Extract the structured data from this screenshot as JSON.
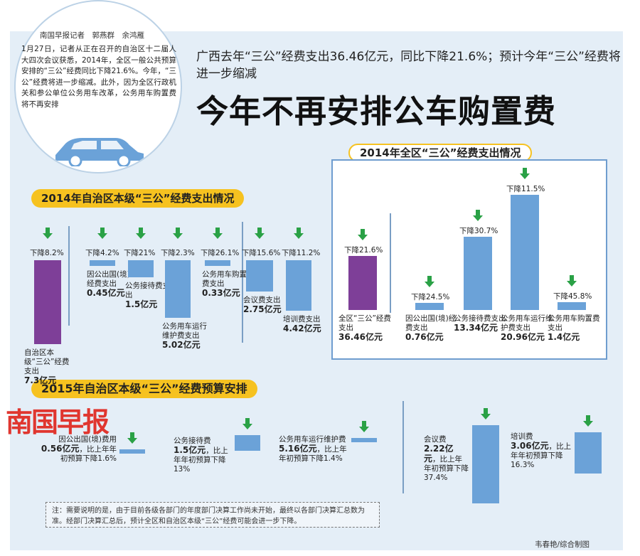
{
  "byline": "南国早报记者　郭燕群　余鸿雁",
  "lead": "1月27日，记者从正在召开的自治区十二届人大四次会议获悉，2014年，全区一般公共预算安排的“三公”经费同比下降21.6%。今年，“三公”经费将进一步缩减。此外，因为全区行政机关和参公单位公务用车改革，公务用车购置费将不再安排",
  "headline_sub": "广西去年“三公”经费支出36.46亿元，同比下降21.6%；预计今年“三公”经费将进一步缩减",
  "headline_main": "今年不再安排公车购置费",
  "brand": "南国早报",
  "note": "注：需要说明的是，由于目前各级各部门的年度部门决算工作尚未开始，最终以各部门决算汇总数为准。经部门决算汇总后，预计全区和自治区本级“三公”经费可能会进一步下降。",
  "credit": "韦春艳/综合制图",
  "colors": {
    "purple": "#7e3f98",
    "blue": "#6ba2d8",
    "green": "#2aa146",
    "yellow": "#f6c220"
  },
  "chart_data": [
    {
      "type": "bar",
      "title": "2014年自治区本级“三公”经费支出情况",
      "unit": "亿元",
      "categories": [
        "自治区本级“三公”经费支出",
        "因公出国(境)经费支出",
        "公务接待费支出",
        "公务用车运行维护费支出",
        "公务用车购置费支出",
        "会议费支出",
        "培训费支出"
      ],
      "values": [
        7.3,
        0.45,
        1.5,
        5.02,
        0.33,
        2.75,
        4.42
      ],
      "declines": [
        "下降8.2%",
        "下降4.2%",
        "下降21%",
        "下降2.3%",
        "下降26.1%",
        "下降15.6%",
        "下降11.2%"
      ],
      "value_labels": [
        "7.3亿元",
        "0.45亿元",
        "1.5亿元",
        "5.02亿元",
        "0.33亿元",
        "2.75亿元",
        "4.42亿元"
      ]
    },
    {
      "type": "bar",
      "title": "2014年全区“三公”经费支出情况",
      "unit": "亿元",
      "categories": [
        "全区“三公”经费支出",
        "因公出国(境)经费支出",
        "公务接待费支出",
        "公务用车运行维护费支出",
        "公务用车购置费支出"
      ],
      "values": [
        36.46,
        0.76,
        13.34,
        20.96,
        1.4
      ],
      "declines": [
        "下降21.6%",
        "下降24.5%",
        "下降30.7%",
        "下降11.5%",
        "下降45.8%"
      ],
      "value_labels": [
        "36.46亿元",
        "0.76亿元",
        "13.34亿元",
        "20.96亿元",
        "1.4亿元"
      ]
    },
    {
      "type": "bar",
      "title": "2015年自治区本级“三公”经费预算安排",
      "unit": "亿元",
      "categories": [
        "因公出国(境)费用",
        "公务接待费",
        "公务用车运行维护费",
        "会议费",
        "培训费"
      ],
      "values": [
        0.56,
        1.5,
        5.16,
        2.22,
        3.06
      ],
      "declines": [
        "比上年年初预算下降1.6%",
        "比上年年初预算下降13%",
        "比上年年初预算下降1.4%",
        "比上年年初预算下降37.4%",
        "比上年年初预算下降16.3%"
      ],
      "value_labels": [
        "0.56亿元",
        "1.5亿元",
        "5.16亿元",
        "2.22亿元",
        "3.06亿元"
      ]
    }
  ],
  "labels": {
    "c1": [
      {
        "name": "自治区本级“三公”经费支出",
        "value": "7.3亿元"
      },
      {
        "name": "因公出国(境)经费支出",
        "value": "0.45亿元"
      },
      {
        "name": "公务接待费支出",
        "value": "1.5亿元"
      },
      {
        "name": "公务用车运行维护费支出",
        "value": "5.02亿元"
      },
      {
        "name": "公务用车购置费支出",
        "value": "0.33亿元"
      },
      {
        "name": "会议费支出",
        "value": "2.75亿元"
      },
      {
        "name": "培训费支出",
        "value": "4.42亿元"
      }
    ],
    "c2": [
      {
        "name": "全区“三公”经费支出",
        "value": "36.46亿元"
      },
      {
        "name": "因公出国(境)经费支出",
        "value": "0.76亿元"
      },
      {
        "name": "公务接待费支出",
        "value": "13.34亿元"
      },
      {
        "name": "公务用车运行维护费支出",
        "value": "20.96亿元"
      },
      {
        "name": "公务用车购置费支出",
        "value": "1.4亿元"
      }
    ],
    "c3": [
      {
        "name": "因公出国(境)费用",
        "value": "0.56亿元",
        "tail": "，比上年年初预算下降1.6%"
      },
      {
        "name": "公务接待费",
        "value": "1.5亿元",
        "tail": "，比上年年初预算下降13%"
      },
      {
        "name": "公务用车运行维护费",
        "value": "5.16亿元",
        "tail": "，比上年年初预算下降1.4%"
      },
      {
        "name": "会议费",
        "value": "2.22亿元",
        "tail": "，比上年年初预算下降37.4%"
      },
      {
        "name": "培训费",
        "value": "3.06亿元",
        "tail": "，比上年年初预算下降16.3%"
      }
    ]
  }
}
